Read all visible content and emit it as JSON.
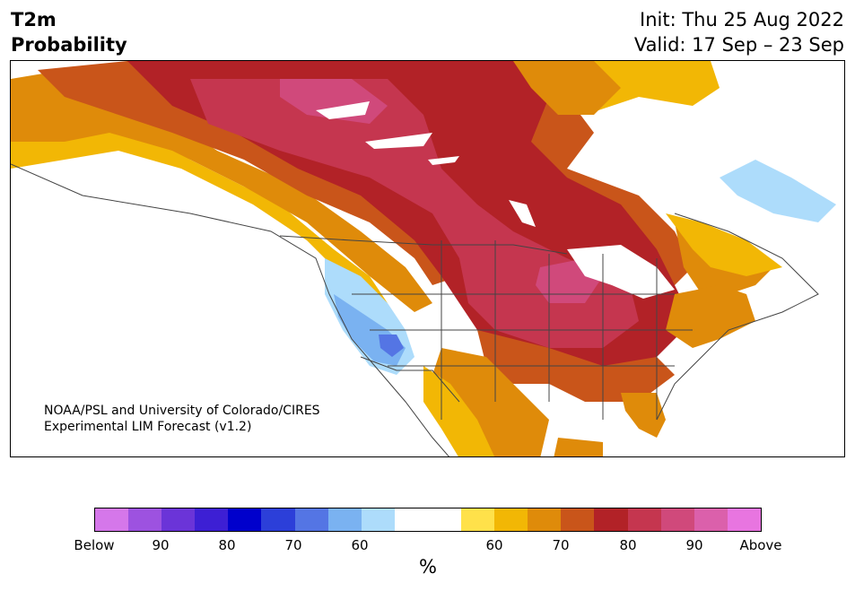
{
  "header": {
    "variable": "T2m",
    "product": "Probability",
    "init": "Init: Thu 25 Aug 2022",
    "valid": "Valid: 17 Sep – 23 Sep"
  },
  "credit": {
    "line1": "NOAA/PSL and University of Colorado/CIRES",
    "line2": "Experimental LIM Forecast (v1.2)"
  },
  "colorbar": {
    "colors": [
      "#d577ea",
      "#9d52e0",
      "#6b34d8",
      "#3d1fd4",
      "#0000cc",
      "#2c3fd9",
      "#5475e4",
      "#7ab2f1",
      "#addcfb",
      "#ffffff",
      "#ffffff",
      "#ffe14a",
      "#f2b705",
      "#df8b0a",
      "#c9551a",
      "#b22227",
      "#c5364f",
      "#d0497b",
      "#db60ab",
      "#e875e0"
    ],
    "tick_labels": [
      "Below",
      "90",
      "80",
      "70",
      "60",
      "60",
      "70",
      "80",
      "90",
      "Above"
    ],
    "unit": "%"
  },
  "map": {
    "region": "North America",
    "palette": {
      "above_90": "#d0497b",
      "above_80": "#c5364f",
      "above_70": "#b22227",
      "above_65": "#c9551a",
      "above_60": "#df8b0a",
      "above_55": "#f2b705",
      "above_50": "#ffe14a",
      "below_55": "#addcfb",
      "below_60": "#7ab2f1",
      "below_65": "#5475e4",
      "outline": "#444444"
    }
  }
}
